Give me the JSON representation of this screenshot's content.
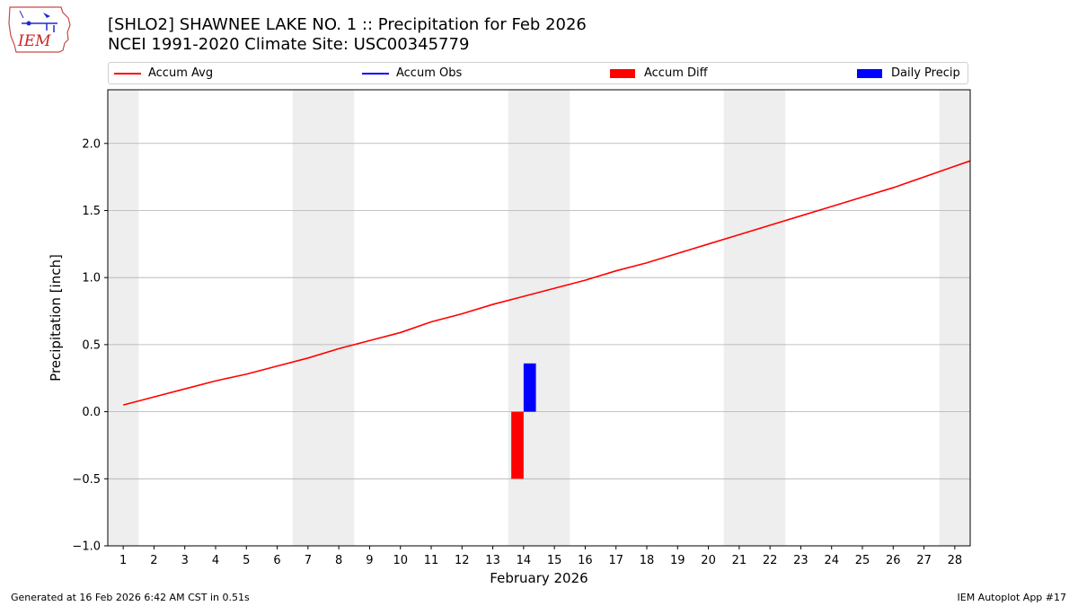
{
  "header": {
    "title_line1": "[SHLO2] SHAWNEE LAKE NO. 1 :: Precipitation for Feb 2026",
    "title_line2": "NCEI 1991-2020 Climate Site: USC00345779",
    "logo_text": "IEM"
  },
  "legend": {
    "items": [
      {
        "label": "Accum Avg",
        "kind": "line",
        "color": "#ff0000"
      },
      {
        "label": "Accum Obs",
        "kind": "line",
        "color": "#0000ff"
      },
      {
        "label": "Accum Diff",
        "kind": "bar",
        "color": "#ff0000"
      },
      {
        "label": "Daily Precip",
        "kind": "bar",
        "color": "#0000ff"
      }
    ]
  },
  "footer": {
    "generated": "Generated at 16 Feb 2026 6:42 AM CST in 0.51s",
    "app": "IEM Autoplot App #17"
  },
  "colors": {
    "accum_avg": "#ff0000",
    "accum_diff": "#ff0000",
    "daily_precip": "#0000ff",
    "weekend_shade": "#eeeeee",
    "grid": "#b0b0b0"
  },
  "chart_data": {
    "type": "line",
    "xlabel": "February 2026",
    "ylabel": "Precipitation [inch]",
    "xlim": [
      0.5,
      28.5
    ],
    "ylim": [
      -1.0,
      2.4
    ],
    "yticks": [
      -1.0,
      -0.5,
      0.0,
      0.5,
      1.0,
      1.5,
      2.0
    ],
    "ytick_labels": [
      "−1.0",
      "−0.5",
      "0.0",
      "0.5",
      "1.0",
      "1.5",
      "2.0"
    ],
    "x": [
      1,
      2,
      3,
      4,
      5,
      6,
      7,
      8,
      9,
      10,
      11,
      12,
      13,
      14,
      15,
      16,
      17,
      18,
      19,
      20,
      21,
      22,
      23,
      24,
      25,
      26,
      27,
      28
    ],
    "xtick_labels": [
      "1",
      "2",
      "3",
      "4",
      "5",
      "6",
      "7",
      "8",
      "9",
      "10",
      "11",
      "12",
      "13",
      "14",
      "15",
      "16",
      "17",
      "18",
      "19",
      "20",
      "21",
      "22",
      "23",
      "24",
      "25",
      "26",
      "27",
      "28"
    ],
    "grid": "horizontal",
    "legend_position": "top",
    "shaded_weekend_days": [
      [
        0.5,
        1.5
      ],
      [
        6.5,
        8.5
      ],
      [
        13.5,
        15.5
      ],
      [
        20.5,
        22.5
      ],
      [
        27.5,
        28.5
      ]
    ],
    "series": [
      {
        "name": "Accum Avg",
        "type": "line",
        "values": [
          0.05,
          0.11,
          0.17,
          0.23,
          0.28,
          0.34,
          0.4,
          0.47,
          0.53,
          0.59,
          0.67,
          0.73,
          0.8,
          0.86,
          0.92,
          0.98,
          1.05,
          1.11,
          1.18,
          1.25,
          1.32,
          1.39,
          1.46,
          1.53,
          1.6,
          1.67,
          1.75,
          1.83
        ]
      },
      {
        "name": "Accum Diff",
        "type": "bar",
        "x": [
          14
        ],
        "values": [
          -0.5
        ]
      },
      {
        "name": "Daily Precip",
        "type": "bar",
        "x": [
          14
        ],
        "values": [
          0.36
        ]
      }
    ]
  }
}
